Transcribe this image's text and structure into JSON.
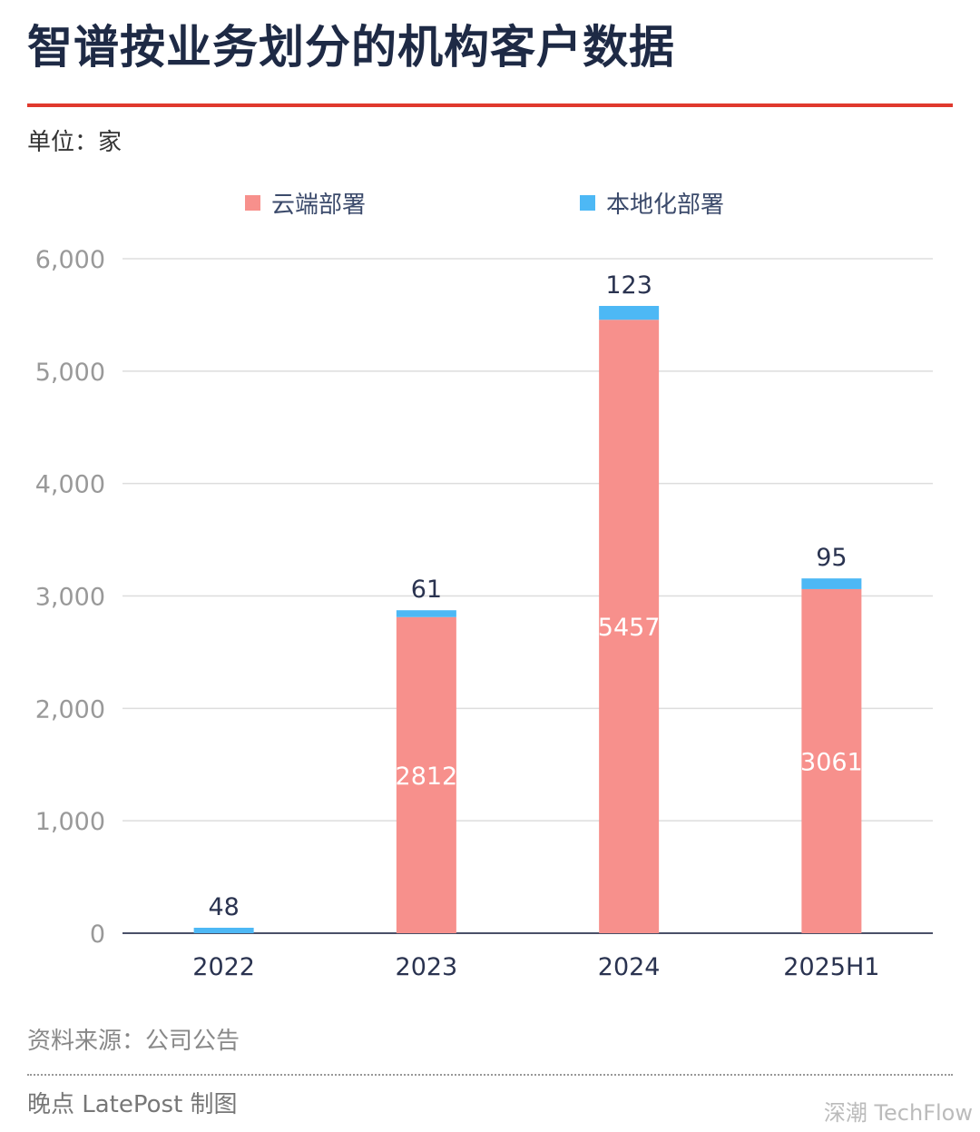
{
  "title": "智谱按业务划分的机构客户数据",
  "unit": "单位：家",
  "source": "资料来源：公司公告",
  "credit": "晚点 LatePost 制图",
  "watermark": "深潮 TechFlow",
  "chart_data": {
    "type": "bar",
    "stacked": true,
    "categories": [
      "2022",
      "2023",
      "2024",
      "2025H1"
    ],
    "series": [
      {
        "name": "云端部署",
        "color": "#f7908c",
        "values": [
          0,
          2812,
          5457,
          3061
        ],
        "labels": [
          "",
          "2812",
          "5457",
          "3061"
        ]
      },
      {
        "name": "本地化部署",
        "color": "#4db8f5",
        "values": [
          48,
          61,
          123,
          95
        ],
        "labels": [
          "48",
          "61",
          "123",
          "95"
        ]
      }
    ],
    "yticks": [
      "0",
      "1,000",
      "2,000",
      "3,000",
      "4,000",
      "5,000",
      "6,000"
    ],
    "ylim": [
      0,
      6000
    ],
    "grid": true,
    "legend": "top"
  }
}
